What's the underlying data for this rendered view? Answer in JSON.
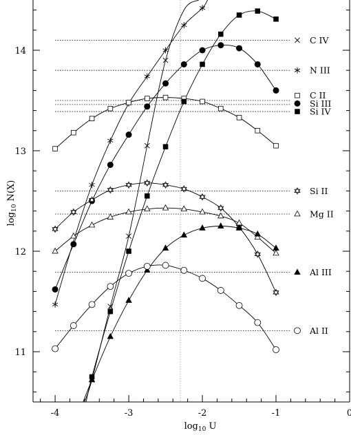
{
  "chart_data": {
    "type": "line",
    "xlabel": "log10 U",
    "ylabel": "log10 N(X)",
    "xlim": [
      -4.3,
      0
    ],
    "ylim": [
      10.5,
      14.5
    ],
    "x_ticks": [
      "-4",
      "-3",
      "-2",
      "-1",
      "0"
    ],
    "y_ticks": [
      "11",
      "12",
      "13",
      "14"
    ],
    "marker_line_x": -2.3,
    "series": [
      {
        "name": "C IV",
        "marker": "x",
        "observed": 14.1,
        "x": [
          -3.5,
          -3.25,
          -3.0,
          -2.75,
          -2.5
        ],
        "y": [
          10.72,
          11.45,
          12.15,
          13.05,
          13.9
        ],
        "curve_x": [
          -3.6,
          -3.5,
          -3.25,
          -3.0,
          -2.75,
          -2.5,
          -2.25,
          -2.05
        ],
        "curve_y": [
          10.45,
          10.72,
          11.45,
          12.15,
          13.05,
          13.9,
          14.4,
          14.55
        ]
      },
      {
        "name": "N III",
        "marker": "asterisk",
        "observed": 13.8,
        "x": [
          -4.0,
          -3.5,
          -3.25,
          -3.0,
          -2.75,
          -2.5,
          -2.25,
          -2.0
        ],
        "y": [
          11.47,
          12.66,
          13.1,
          13.47,
          13.74,
          14.0,
          14.25,
          14.42
        ],
        "curve_x": [
          -4.0,
          -3.75,
          -3.5,
          -3.25,
          -3.0,
          -2.75,
          -2.5,
          -2.25,
          -2.0,
          -1.93
        ],
        "curve_y": [
          11.47,
          12.1,
          12.66,
          13.1,
          13.47,
          13.74,
          14.0,
          14.25,
          14.42,
          14.5
        ]
      },
      {
        "name": "C II",
        "marker": "open-square",
        "observed": 13.5,
        "x": [
          -4.0,
          -3.75,
          -3.5,
          -3.25,
          -3.0,
          -2.75,
          -2.5,
          -2.25,
          -2.0,
          -1.75,
          -1.5,
          -1.25,
          -1.0
        ],
        "y": [
          13.02,
          13.18,
          13.32,
          13.42,
          13.48,
          13.52,
          13.53,
          13.52,
          13.49,
          13.42,
          13.33,
          13.2,
          13.05
        ]
      },
      {
        "name": "Si III",
        "marker": "filled-circle",
        "observed": 13.46,
        "x": [
          -4.0,
          -3.75,
          -3.5,
          -3.25,
          -3.0,
          -2.75,
          -2.5,
          -2.25,
          -2.0,
          -1.75,
          -1.5,
          -1.25,
          -1.0
        ],
        "y": [
          11.62,
          12.07,
          12.5,
          12.86,
          13.16,
          13.44,
          13.67,
          13.86,
          14.0,
          14.05,
          14.02,
          13.86,
          13.6
        ]
      },
      {
        "name": "Si IV",
        "marker": "filled-square",
        "observed": 13.39,
        "x": [
          -3.5,
          -3.25,
          -3.0,
          -2.75,
          -2.5,
          -2.25,
          -2.0,
          -1.75,
          -1.5,
          -1.25,
          -1.0
        ],
        "y": [
          10.75,
          11.4,
          12.0,
          12.55,
          13.04,
          13.49,
          13.86,
          14.16,
          14.35,
          14.39,
          14.31
        ],
        "curve_x": [
          -3.58,
          -3.5,
          -3.25,
          -3.0,
          -2.75,
          -2.5,
          -2.25,
          -2.0,
          -1.75,
          -1.5,
          -1.25,
          -1.0
        ],
        "curve_y": [
          10.5,
          10.75,
          11.4,
          12.0,
          12.55,
          13.04,
          13.49,
          13.86,
          14.16,
          14.35,
          14.39,
          14.31
        ]
      },
      {
        "name": "Si II",
        "marker": "star",
        "observed": 12.6,
        "x": [
          -4.0,
          -3.75,
          -3.5,
          -3.25,
          -3.0,
          -2.75,
          -2.5,
          -2.25,
          -2.0,
          -1.75,
          -1.5,
          -1.25,
          -1.0
        ],
        "y": [
          12.22,
          12.39,
          12.51,
          12.61,
          12.66,
          12.68,
          12.66,
          12.62,
          12.54,
          12.43,
          12.24,
          11.97,
          11.59
        ]
      },
      {
        "name": "Mg II",
        "marker": "open-triangle",
        "observed": 12.37,
        "x": [
          -4.0,
          -3.75,
          -3.5,
          -3.25,
          -3.0,
          -2.75,
          -2.5,
          -2.25,
          -2.0,
          -1.75,
          -1.5,
          -1.25,
          -1.0
        ],
        "y": [
          12.0,
          12.15,
          12.26,
          12.34,
          12.39,
          12.42,
          12.43,
          12.42,
          12.39,
          12.35,
          12.28,
          12.14,
          11.98
        ]
      },
      {
        "name": "Al III",
        "marker": "filled-triangle",
        "observed": 11.79,
        "x": [
          -3.5,
          -3.25,
          -3.0,
          -2.75,
          -2.5,
          -2.25,
          -2.0,
          -1.75,
          -1.5,
          -1.25,
          -1.0
        ],
        "y": [
          10.72,
          11.15,
          11.51,
          11.81,
          12.03,
          12.16,
          12.23,
          12.25,
          12.23,
          12.17,
          12.03
        ],
        "curve_x": [
          -3.62,
          -3.5,
          -3.25,
          -3.0,
          -2.75,
          -2.5,
          -2.25,
          -2.0,
          -1.75,
          -1.5,
          -1.25,
          -1.0
        ],
        "curve_y": [
          10.5,
          10.72,
          11.15,
          11.51,
          11.81,
          12.03,
          12.16,
          12.23,
          12.25,
          12.23,
          12.17,
          12.03
        ]
      },
      {
        "name": "Al II",
        "marker": "open-circle",
        "observed": 11.21,
        "x": [
          -4.0,
          -3.75,
          -3.5,
          -3.25,
          -3.0,
          -2.75,
          -2.5,
          -2.25,
          -2.0,
          -1.75,
          -1.5,
          -1.25,
          -1.0
        ],
        "y": [
          11.03,
          11.26,
          11.47,
          11.65,
          11.78,
          11.85,
          11.86,
          11.81,
          11.73,
          11.61,
          11.46,
          11.29,
          11.02
        ]
      }
    ]
  }
}
